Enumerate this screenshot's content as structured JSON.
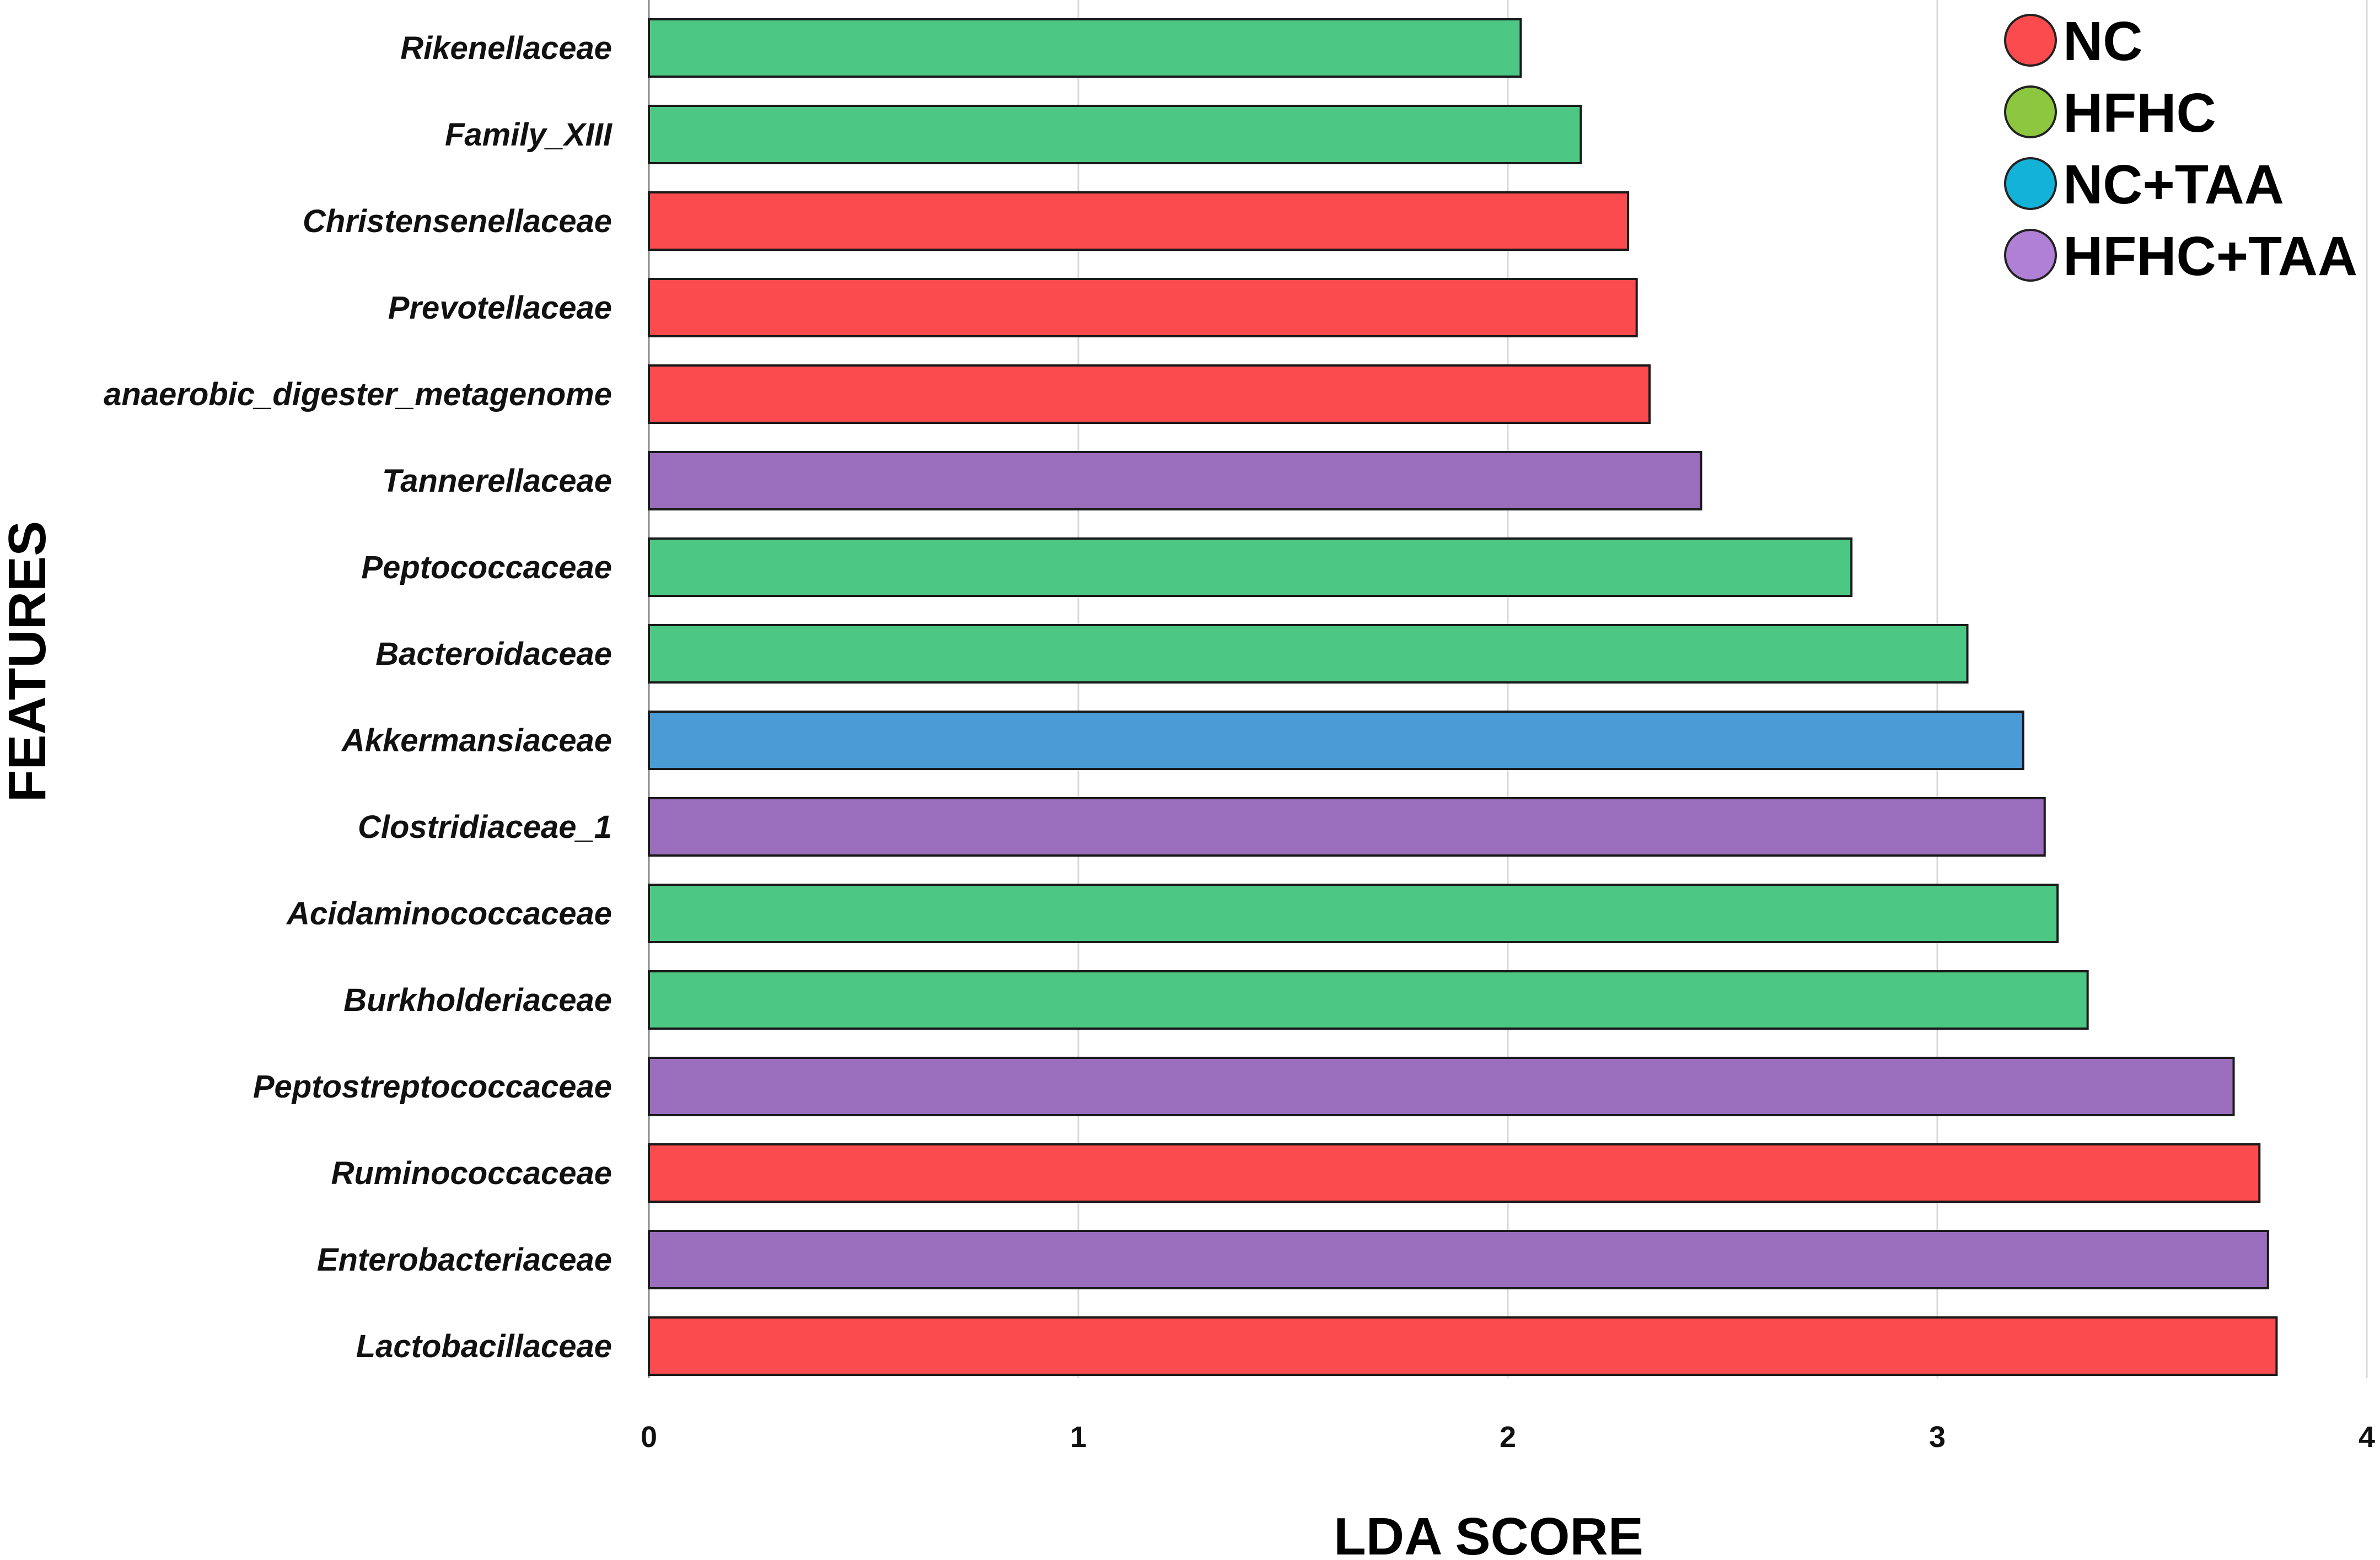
{
  "chart_data": {
    "type": "bar",
    "orientation": "horizontal",
    "xlabel": "LDA SCORE",
    "ylabel": "FEATURES",
    "xlim": [
      0,
      4
    ],
    "xticks": [
      "0",
      "1",
      "2",
      "3",
      "4"
    ],
    "grid": "vertical",
    "legend_position": "top-right",
    "groups": [
      {
        "name": "NC",
        "color": "#fb4b4e"
      },
      {
        "name": "HFHC",
        "color": "#8dc63f"
      },
      {
        "name": "NC+TAA",
        "color": "#12b2d9"
      },
      {
        "name": "HFHC+TAA",
        "color": "#b07fd6"
      }
    ],
    "bar_colors": {
      "NC": "#fb4b4e",
      "HFHC": "#4cc784",
      "NC+TAA": "#4a9bd6",
      "HFHC+TAA": "#9a6dbd"
    },
    "bars": [
      {
        "label": "Rikenellaceae",
        "value": 2.03,
        "group": "HFHC"
      },
      {
        "label": "Family_XIII",
        "value": 2.17,
        "group": "HFHC"
      },
      {
        "label": "Christensenellaceae",
        "value": 2.28,
        "group": "NC"
      },
      {
        "label": "Prevotellaceae",
        "value": 2.3,
        "group": "NC"
      },
      {
        "label": "anaerobic_digester_metagenome",
        "value": 2.33,
        "group": "NC"
      },
      {
        "label": "Tannerellaceae",
        "value": 2.45,
        "group": "HFHC+TAA"
      },
      {
        "label": "Peptococcaceae",
        "value": 2.8,
        "group": "HFHC"
      },
      {
        "label": "Bacteroidaceae",
        "value": 3.07,
        "group": "HFHC"
      },
      {
        "label": "Akkermansiaceae",
        "value": 3.2,
        "group": "NC+TAA"
      },
      {
        "label": "Clostridiaceae_1",
        "value": 3.25,
        "group": "HFHC+TAA"
      },
      {
        "label": "Acidaminococcaceae",
        "value": 3.28,
        "group": "HFHC"
      },
      {
        "label": "Burkholderiaceae",
        "value": 3.35,
        "group": "HFHC"
      },
      {
        "label": "Peptostreptococcaceae",
        "value": 3.69,
        "group": "HFHC+TAA"
      },
      {
        "label": "Ruminococcaceae",
        "value": 3.75,
        "group": "NC"
      },
      {
        "label": "Enterobacteriaceae",
        "value": 3.77,
        "group": "HFHC+TAA"
      },
      {
        "label": "Lactobacillaceae",
        "value": 3.79,
        "group": "NC"
      }
    ]
  }
}
